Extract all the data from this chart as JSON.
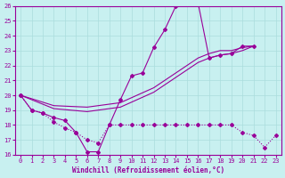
{
  "bg_color": "#c8f0f0",
  "line_color": "#990099",
  "grid_color": "#aadddd",
  "xlabel": "Windchill (Refroidissement éolien,°C)",
  "xlim": [
    -0.5,
    23.5
  ],
  "ylim": [
    16,
    26
  ],
  "xticks": [
    0,
    1,
    2,
    3,
    4,
    5,
    6,
    7,
    8,
    9,
    10,
    11,
    12,
    13,
    14,
    15,
    16,
    17,
    18,
    19,
    20,
    21,
    22,
    23
  ],
  "yticks": [
    16,
    17,
    18,
    19,
    20,
    21,
    22,
    23,
    24,
    25,
    26
  ],
  "line1": {
    "x": [
      0,
      1,
      2,
      3,
      4,
      5,
      6,
      7,
      8,
      9,
      10,
      11,
      12,
      13,
      14,
      15,
      16,
      17,
      18,
      19,
      20,
      21
    ],
    "y": [
      20,
      19,
      18.8,
      18.5,
      18.3,
      17.5,
      16.2,
      16.2,
      18.0,
      19.7,
      21.3,
      21.5,
      23.2,
      24.4,
      26.0,
      26.2,
      26.2,
      22.5,
      22.7,
      22.8,
      23.3,
      23.3
    ]
  },
  "line2": {
    "x": [
      0,
      1,
      2,
      3,
      4,
      5,
      6,
      7,
      8,
      9,
      10,
      11,
      12,
      13,
      14,
      15,
      16,
      17,
      18,
      19,
      20,
      21,
      22,
      23
    ],
    "y": [
      20,
      19,
      18.8,
      18.2,
      17.8,
      17.5,
      17.0,
      16.8,
      18.0,
      18.0,
      18.0,
      18.0,
      18.0,
      18.0,
      18.0,
      18.0,
      18.0,
      18.0,
      18.0,
      18.0,
      17.5,
      17.3,
      16.5,
      17.3
    ]
  },
  "line3": {
    "x": [
      0,
      3,
      6,
      9,
      12,
      14,
      16,
      17,
      18,
      19,
      20,
      21
    ],
    "y": [
      20,
      19.3,
      19.2,
      19.5,
      20.5,
      21.5,
      22.5,
      22.8,
      23.0,
      23.0,
      23.2,
      23.3
    ]
  },
  "line4": {
    "x": [
      0,
      3,
      6,
      9,
      12,
      14,
      16,
      17,
      18,
      19,
      20,
      21
    ],
    "y": [
      20,
      19.1,
      18.9,
      19.2,
      20.2,
      21.2,
      22.2,
      22.5,
      22.7,
      22.8,
      23.0,
      23.3
    ]
  }
}
